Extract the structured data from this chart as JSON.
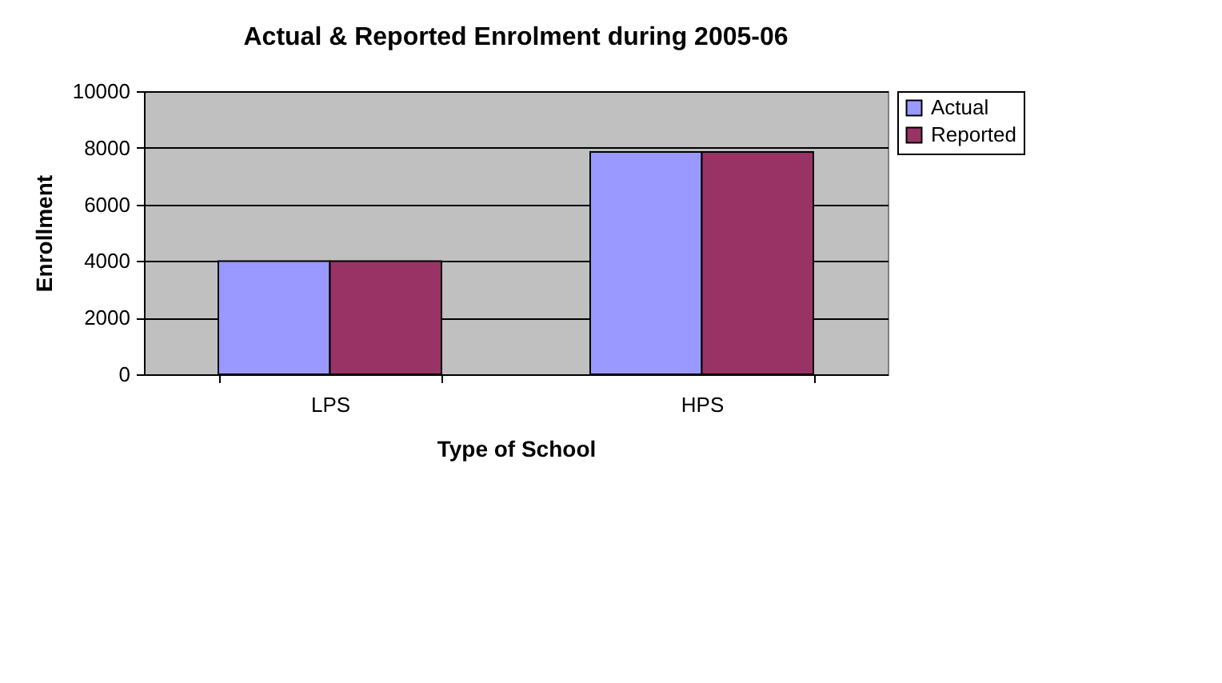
{
  "chart_data": {
    "type": "bar",
    "title": "Actual & Reported Enrolment during 2005-06",
    "xlabel": "Type of School",
    "ylabel": "Enrollment",
    "categories": [
      "LPS",
      "HPS"
    ],
    "series": [
      {
        "name": "Actual",
        "color": "#9999ff",
        "values": [
          4000,
          7850
        ]
      },
      {
        "name": "Reported",
        "color": "#993366",
        "values": [
          4000,
          7850
        ]
      }
    ],
    "ylim": [
      0,
      10000
    ],
    "yticks": [
      0,
      2000,
      4000,
      6000,
      8000,
      10000
    ],
    "grid": "y",
    "legend": "right"
  }
}
